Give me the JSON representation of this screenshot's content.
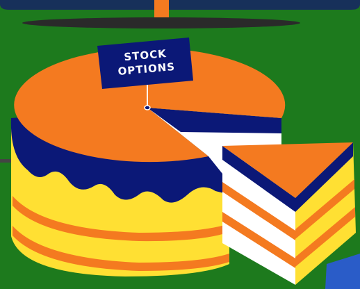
{
  "flag": {
    "lines": [
      "STOCK",
      "OPTIONS"
    ]
  }
}
